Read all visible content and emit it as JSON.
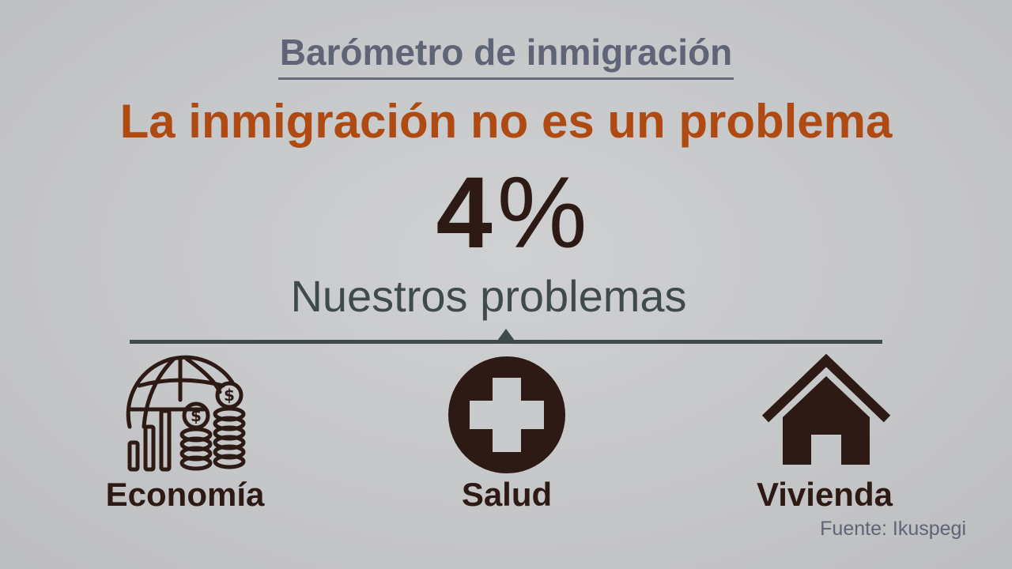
{
  "heading": "Barómetro de inmigración",
  "headline": "La inmigración no es un problema",
  "stat": {
    "number": "4",
    "unit": "%"
  },
  "subheading": "Nuestros problemas",
  "categories": [
    {
      "label": "Economía",
      "icon": "economy-icon"
    },
    {
      "label": "Salud",
      "icon": "health-cross-icon"
    },
    {
      "label": "Vivienda",
      "icon": "house-icon"
    }
  ],
  "source": "Fuente: Ikuspegi",
  "colors": {
    "background": "#c6c7c9",
    "heading": "#5f6477",
    "headline": "#b04a13",
    "dark": "#2d1a14",
    "subheading": "#3f4b4a"
  }
}
